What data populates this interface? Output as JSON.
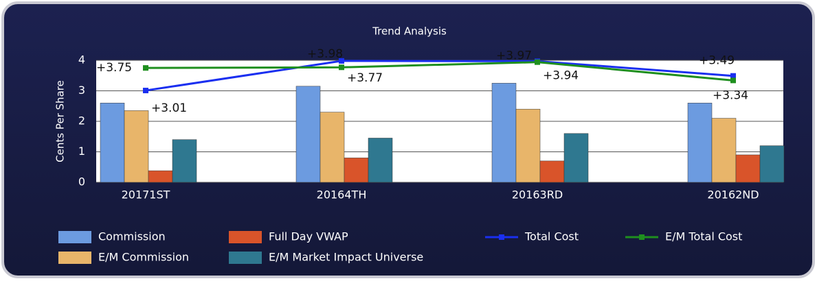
{
  "chart_data": {
    "type": "bar",
    "title": "Trend Analysis",
    "y_label": "Cents Per Share",
    "categories": [
      "20171ST",
      "20164TH",
      "20163RD",
      "20162ND"
    ],
    "ylim": [
      0,
      4
    ],
    "yticks": [
      0,
      1,
      2,
      3,
      4
    ],
    "grid": true,
    "series": [
      {
        "name": "Commission",
        "type": "bar",
        "color": "#6c9be0",
        "values": [
          2.6,
          3.15,
          3.25,
          2.6
        ]
      },
      {
        "name": "E/M Commission",
        "type": "bar",
        "color": "#e8b56a",
        "values": [
          2.35,
          2.3,
          2.4,
          2.1
        ]
      },
      {
        "name": "Full Day VWAP",
        "type": "bar",
        "color": "#d9542a",
        "values": [
          0.38,
          0.8,
          0.7,
          0.9
        ]
      },
      {
        "name": "E/M Market Impact Universe",
        "type": "bar",
        "color": "#2f7890",
        "values": [
          1.4,
          1.45,
          1.6,
          1.2
        ]
      },
      {
        "name": "Total Cost",
        "type": "line",
        "color": "#1a2ff0",
        "values": [
          3.01,
          3.98,
          3.97,
          3.49
        ],
        "value_labels": [
          "+3.01",
          "+3.98",
          "+3.97",
          "+3.49"
        ]
      },
      {
        "name": "E/M Total Cost",
        "type": "line",
        "color": "#1f8f1f",
        "values": [
          3.75,
          3.77,
          3.94,
          3.34
        ],
        "value_labels": [
          "+3.75",
          "+3.77",
          "+3.94",
          "+3.34"
        ]
      }
    ]
  }
}
